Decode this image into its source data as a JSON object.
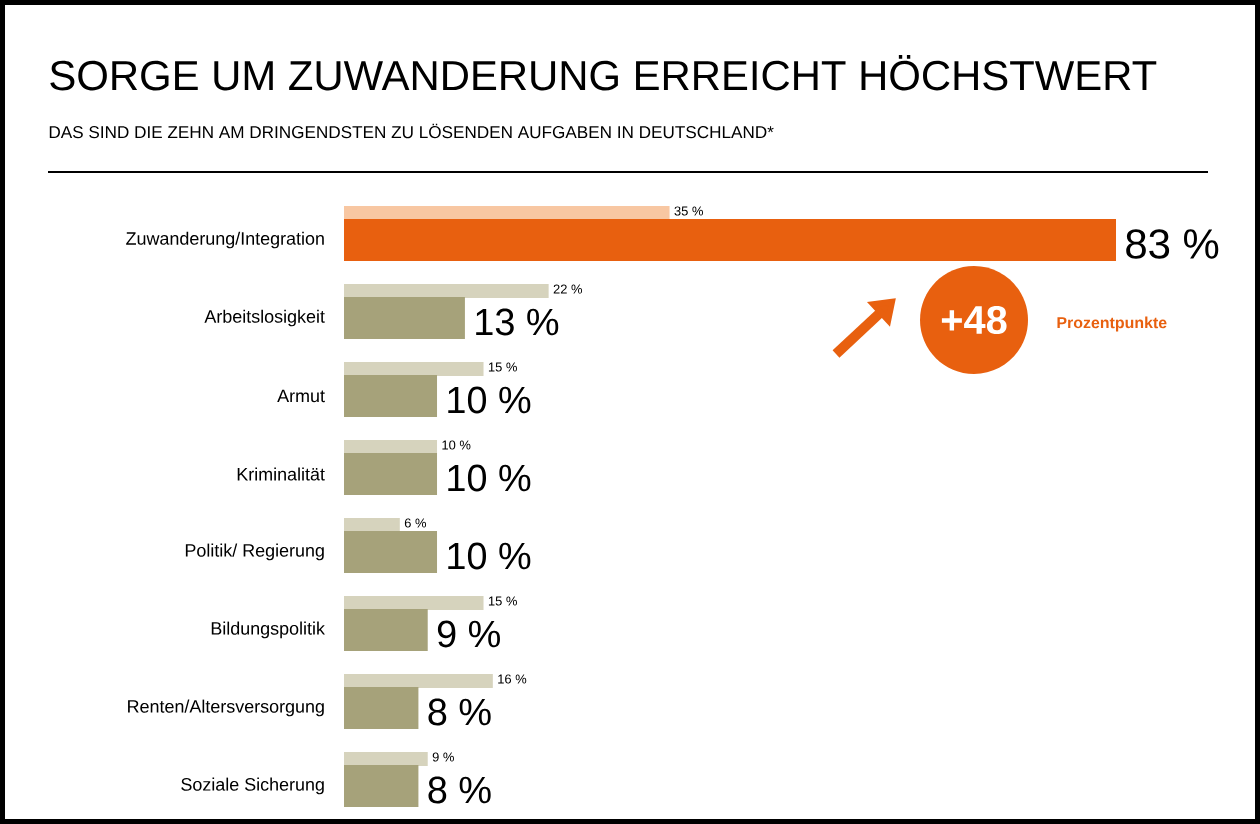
{
  "chart_data": {
    "type": "bar",
    "orientation": "horizontal",
    "title": "SORGE UM ZUWANDERUNG ERREICHT HÖCHSTWERT",
    "subtitle": "DAS SIND DIE ZEHN AM DRINGENDSTEN ZU LÖSENDEN AUFGABEN IN DEUTSCHLAND*",
    "categories": [
      "Zuwanderung/Integration",
      "Arbeitslosigkeit",
      "Armut",
      "Kriminalität",
      "Politik/ Regierung",
      "Bildungspolitik",
      "Renten/Altersversorgung",
      "Soziale Sicherung"
    ],
    "series": [
      {
        "colors": [
          "#f8c7a2",
          "#d6d3bd",
          "#d6d3bd",
          "#d6d3bd",
          "#d6d3bd",
          "#d6d3bd",
          "#d6d3bd",
          "#d6d3bd"
        ],
        "values": [
          35,
          22,
          15,
          10,
          6,
          15,
          16,
          9
        ],
        "value_labels": [
          "35 %",
          "22 %",
          "15 %",
          "10 %",
          "6 %",
          "15 %",
          "16 %",
          "9 %"
        ]
      },
      {
        "colors": [
          "#e8600f",
          "#a6a27a",
          "#a6a27a",
          "#a6a27a",
          "#a6a27a",
          "#a6a27a",
          "#a6a27a",
          "#a6a27a"
        ],
        "values": [
          83,
          13,
          10,
          10,
          10,
          9,
          8,
          8
        ],
        "value_labels": [
          "83 %",
          "13 %",
          "10 %",
          "10 %",
          "10 %",
          "9 %",
          "8 %",
          "8 %"
        ]
      }
    ],
    "annotations": [
      "+48",
      "Prozentpunkte"
    ]
  }
}
